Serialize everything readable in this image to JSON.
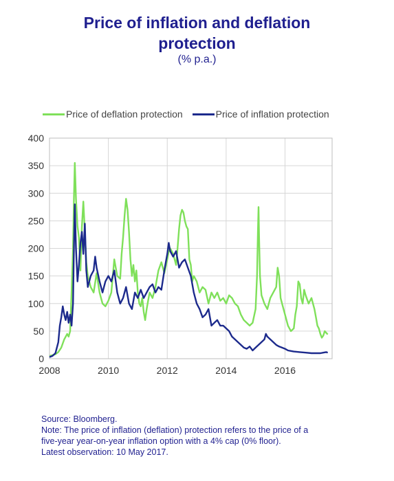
{
  "title_line1": "Price of inflation and deflation",
  "title_line2": "protection",
  "subtitle": "(% p.a.)",
  "legend": [
    {
      "label": "Price of deflation protection",
      "color": "#7fe05a"
    },
    {
      "label": "Price of inflation protection",
      "color": "#1c2a8c"
    }
  ],
  "notes": {
    "source": "Source: Bloomberg.",
    "note_line1": "Note: The price of inflation (deflation) protection refers to the price of a",
    "note_line2": "five-year year-on-year inflation option with a 4% cap (0% floor).",
    "latest": "Latest observation: 10 May 2017."
  },
  "chart_data": {
    "type": "line",
    "x_ticks": [
      "2008",
      "2010",
      "2012",
      "2014",
      "2016"
    ],
    "y_ticks": [
      "0",
      "50",
      "100",
      "150",
      "200",
      "250",
      "300",
      "350",
      "400"
    ],
    "xlim": [
      2008.0,
      2017.6
    ],
    "ylim": [
      0,
      400
    ],
    "grid": true,
    "legend_position": "top",
    "series": [
      {
        "name": "Price of deflation protection",
        "color": "#7fe05a",
        "points": [
          [
            2008.0,
            5
          ],
          [
            2008.2,
            8
          ],
          [
            2008.3,
            12
          ],
          [
            2008.4,
            20
          ],
          [
            2008.5,
            35
          ],
          [
            2008.6,
            45
          ],
          [
            2008.65,
            40
          ],
          [
            2008.7,
            50
          ],
          [
            2008.75,
            120
          ],
          [
            2008.8,
            200
          ],
          [
            2008.83,
            290
          ],
          [
            2008.86,
            355
          ],
          [
            2008.9,
            290
          ],
          [
            2008.95,
            240
          ],
          [
            2009.0,
            220
          ],
          [
            2009.05,
            160
          ],
          [
            2009.1,
            240
          ],
          [
            2009.15,
            285
          ],
          [
            2009.2,
            230
          ],
          [
            2009.25,
            175
          ],
          [
            2009.3,
            150
          ],
          [
            2009.4,
            130
          ],
          [
            2009.5,
            120
          ],
          [
            2009.6,
            155
          ],
          [
            2009.7,
            120
          ],
          [
            2009.8,
            100
          ],
          [
            2009.9,
            95
          ],
          [
            2010.0,
            105
          ],
          [
            2010.1,
            120
          ],
          [
            2010.2,
            180
          ],
          [
            2010.3,
            150
          ],
          [
            2010.4,
            145
          ],
          [
            2010.45,
            190
          ],
          [
            2010.5,
            220
          ],
          [
            2010.55,
            260
          ],
          [
            2010.6,
            290
          ],
          [
            2010.65,
            270
          ],
          [
            2010.7,
            230
          ],
          [
            2010.75,
            180
          ],
          [
            2010.8,
            150
          ],
          [
            2010.85,
            170
          ],
          [
            2010.9,
            140
          ],
          [
            2010.95,
            160
          ],
          [
            2011.0,
            120
          ],
          [
            2011.05,
            100
          ],
          [
            2011.1,
            95
          ],
          [
            2011.15,
            110
          ],
          [
            2011.2,
            85
          ],
          [
            2011.25,
            70
          ],
          [
            2011.3,
            90
          ],
          [
            2011.35,
            105
          ],
          [
            2011.4,
            120
          ],
          [
            2011.5,
            110
          ],
          [
            2011.6,
            130
          ],
          [
            2011.7,
            160
          ],
          [
            2011.8,
            175
          ],
          [
            2011.9,
            155
          ],
          [
            2012.0,
            180
          ],
          [
            2012.05,
            195
          ],
          [
            2012.1,
            200
          ],
          [
            2012.2,
            190
          ],
          [
            2012.3,
            170
          ],
          [
            2012.35,
            200
          ],
          [
            2012.4,
            235
          ],
          [
            2012.45,
            260
          ],
          [
            2012.5,
            270
          ],
          [
            2012.55,
            265
          ],
          [
            2012.6,
            250
          ],
          [
            2012.65,
            240
          ],
          [
            2012.7,
            235
          ],
          [
            2012.75,
            180
          ],
          [
            2012.8,
            170
          ],
          [
            2012.85,
            140
          ],
          [
            2012.9,
            150
          ],
          [
            2013.0,
            140
          ],
          [
            2013.1,
            120
          ],
          [
            2013.2,
            130
          ],
          [
            2013.3,
            125
          ],
          [
            2013.4,
            100
          ],
          [
            2013.5,
            120
          ],
          [
            2013.6,
            110
          ],
          [
            2013.7,
            120
          ],
          [
            2013.8,
            105
          ],
          [
            2013.9,
            110
          ],
          [
            2014.0,
            100
          ],
          [
            2014.1,
            115
          ],
          [
            2014.2,
            110
          ],
          [
            2014.3,
            100
          ],
          [
            2014.4,
            95
          ],
          [
            2014.5,
            80
          ],
          [
            2014.6,
            70
          ],
          [
            2014.7,
            65
          ],
          [
            2014.8,
            60
          ],
          [
            2014.9,
            65
          ],
          [
            2015.0,
            90
          ],
          [
            2015.05,
            150
          ],
          [
            2015.08,
            230
          ],
          [
            2015.1,
            275
          ],
          [
            2015.12,
            220
          ],
          [
            2015.15,
            150
          ],
          [
            2015.2,
            115
          ],
          [
            2015.3,
            100
          ],
          [
            2015.4,
            90
          ],
          [
            2015.5,
            110
          ],
          [
            2015.6,
            120
          ],
          [
            2015.7,
            130
          ],
          [
            2015.75,
            165
          ],
          [
            2015.8,
            150
          ],
          [
            2015.85,
            110
          ],
          [
            2015.9,
            100
          ],
          [
            2016.0,
            80
          ],
          [
            2016.1,
            60
          ],
          [
            2016.2,
            50
          ],
          [
            2016.3,
            55
          ],
          [
            2016.35,
            80
          ],
          [
            2016.4,
            95
          ],
          [
            2016.45,
            140
          ],
          [
            2016.5,
            135
          ],
          [
            2016.55,
            110
          ],
          [
            2016.6,
            100
          ],
          [
            2016.65,
            125
          ],
          [
            2016.7,
            115
          ],
          [
            2016.8,
            100
          ],
          [
            2016.9,
            110
          ],
          [
            2017.0,
            90
          ],
          [
            2017.05,
            75
          ],
          [
            2017.1,
            60
          ],
          [
            2017.15,
            55
          ],
          [
            2017.2,
            45
          ],
          [
            2017.25,
            38
          ],
          [
            2017.3,
            42
          ],
          [
            2017.35,
            50
          ],
          [
            2017.4,
            47
          ],
          [
            2017.45,
            44
          ]
        ]
      },
      {
        "name": "Price of inflation protection",
        "color": "#1c2a8c",
        "points": [
          [
            2008.0,
            3
          ],
          [
            2008.1,
            5
          ],
          [
            2008.2,
            10
          ],
          [
            2008.3,
            30
          ],
          [
            2008.35,
            60
          ],
          [
            2008.4,
            75
          ],
          [
            2008.45,
            95
          ],
          [
            2008.5,
            80
          ],
          [
            2008.55,
            70
          ],
          [
            2008.6,
            85
          ],
          [
            2008.65,
            65
          ],
          [
            2008.7,
            80
          ],
          [
            2008.75,
            60
          ],
          [
            2008.8,
            100
          ],
          [
            2008.83,
            200
          ],
          [
            2008.86,
            280
          ],
          [
            2008.9,
            200
          ],
          [
            2008.95,
            140
          ],
          [
            2009.0,
            170
          ],
          [
            2009.05,
            210
          ],
          [
            2009.1,
            230
          ],
          [
            2009.15,
            190
          ],
          [
            2009.2,
            245
          ],
          [
            2009.25,
            160
          ],
          [
            2009.3,
            130
          ],
          [
            2009.4,
            150
          ],
          [
            2009.5,
            160
          ],
          [
            2009.55,
            185
          ],
          [
            2009.6,
            165
          ],
          [
            2009.7,
            140
          ],
          [
            2009.8,
            120
          ],
          [
            2009.9,
            140
          ],
          [
            2010.0,
            150
          ],
          [
            2010.1,
            140
          ],
          [
            2010.2,
            160
          ],
          [
            2010.3,
            120
          ],
          [
            2010.4,
            100
          ],
          [
            2010.5,
            110
          ],
          [
            2010.6,
            130
          ],
          [
            2010.7,
            100
          ],
          [
            2010.8,
            90
          ],
          [
            2010.9,
            120
          ],
          [
            2011.0,
            110
          ],
          [
            2011.1,
            125
          ],
          [
            2011.2,
            110
          ],
          [
            2011.3,
            120
          ],
          [
            2011.4,
            130
          ],
          [
            2011.5,
            135
          ],
          [
            2011.6,
            120
          ],
          [
            2011.7,
            130
          ],
          [
            2011.8,
            125
          ],
          [
            2011.9,
            160
          ],
          [
            2012.0,
            190
          ],
          [
            2012.05,
            210
          ],
          [
            2012.1,
            195
          ],
          [
            2012.2,
            185
          ],
          [
            2012.3,
            195
          ],
          [
            2012.4,
            165
          ],
          [
            2012.5,
            175
          ],
          [
            2012.6,
            180
          ],
          [
            2012.7,
            165
          ],
          [
            2012.8,
            150
          ],
          [
            2012.9,
            120
          ],
          [
            2013.0,
            100
          ],
          [
            2013.1,
            90
          ],
          [
            2013.2,
            75
          ],
          [
            2013.3,
            80
          ],
          [
            2013.4,
            90
          ],
          [
            2013.5,
            60
          ],
          [
            2013.6,
            65
          ],
          [
            2013.7,
            70
          ],
          [
            2013.8,
            60
          ],
          [
            2013.9,
            60
          ],
          [
            2014.0,
            55
          ],
          [
            2014.1,
            50
          ],
          [
            2014.2,
            40
          ],
          [
            2014.3,
            35
          ],
          [
            2014.4,
            30
          ],
          [
            2014.5,
            25
          ],
          [
            2014.6,
            20
          ],
          [
            2014.7,
            18
          ],
          [
            2014.8,
            22
          ],
          [
            2014.9,
            15
          ],
          [
            2015.0,
            20
          ],
          [
            2015.1,
            25
          ],
          [
            2015.2,
            30
          ],
          [
            2015.3,
            35
          ],
          [
            2015.35,
            45
          ],
          [
            2015.4,
            40
          ],
          [
            2015.5,
            35
          ],
          [
            2015.6,
            30
          ],
          [
            2015.7,
            25
          ],
          [
            2015.8,
            22
          ],
          [
            2015.9,
            20
          ],
          [
            2016.0,
            18
          ],
          [
            2016.1,
            15
          ],
          [
            2016.2,
            14
          ],
          [
            2016.3,
            13
          ],
          [
            2016.5,
            12
          ],
          [
            2016.7,
            11
          ],
          [
            2016.9,
            10
          ],
          [
            2017.0,
            10
          ],
          [
            2017.2,
            10
          ],
          [
            2017.3,
            11
          ],
          [
            2017.4,
            12
          ],
          [
            2017.45,
            11
          ]
        ]
      }
    ]
  }
}
